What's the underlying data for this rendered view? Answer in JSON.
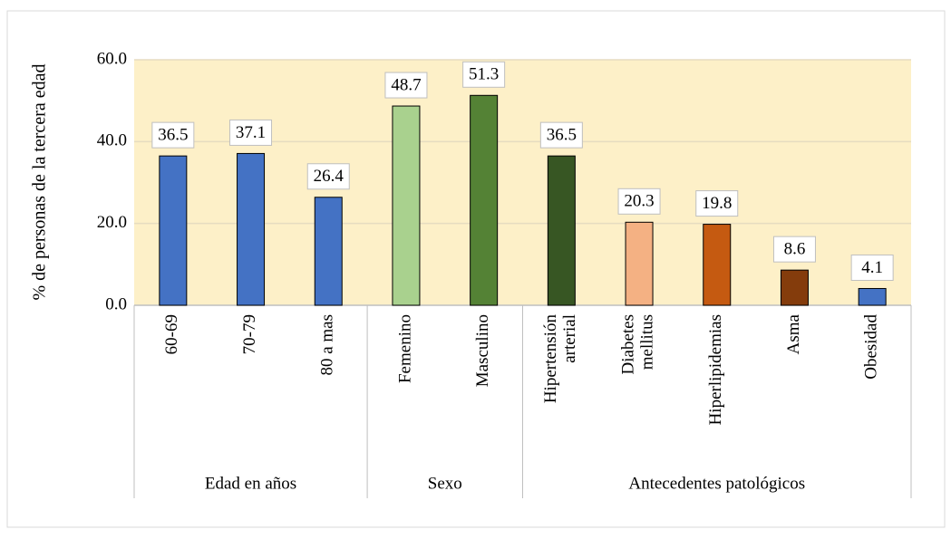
{
  "chart_data": {
    "type": "bar",
    "y_label": "% de personas de la tercera edad",
    "categories": [
      "60-69",
      "70-79",
      "80 a mas",
      "Femenino",
      "Masculino",
      "Hipertensión\narterial",
      "Diabetes\nmellitus",
      "Hiperlipidemias",
      "Asma",
      "Obesidad"
    ],
    "values": [
      36.5,
      37.1,
      26.4,
      48.7,
      51.3,
      36.5,
      20.3,
      19.8,
      8.6,
      4.1
    ],
    "colors": [
      "#4472c4",
      "#4472c4",
      "#4472c4",
      "#a9d18e",
      "#548235",
      "#375623",
      "#f4b183",
      "#c55a11",
      "#843c0c",
      "#4472c4"
    ],
    "groups": [
      {
        "label": "Edad en años",
        "span": 3
      },
      {
        "label": "Sexo",
        "span": 2
      },
      {
        "label": "Antecedentes patológicos",
        "span": 5
      }
    ],
    "ylim": [
      0,
      60
    ],
    "yticks": [
      {
        "value": 0,
        "label": "0.0"
      },
      {
        "value": 20,
        "label": "20.0"
      },
      {
        "value": 40,
        "label": "40.0"
      },
      {
        "value": 60,
        "label": "60.0"
      }
    ],
    "grid": true
  }
}
